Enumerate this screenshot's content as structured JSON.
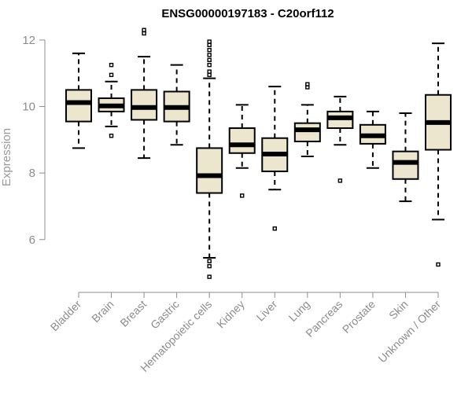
{
  "chart_data": {
    "type": "boxplot",
    "title": "ENSG00000197183 - C20orf112",
    "xlabel": "",
    "ylabel": "Expression",
    "ylim": [
      4.6,
      12.4
    ],
    "yticks": [
      6,
      8,
      10,
      12
    ],
    "categories": [
      "Bladder",
      "Brain",
      "Breast",
      "Gastric",
      "Hematopoietic cells",
      "Kidney",
      "Liver",
      "Lung",
      "Pancreas",
      "Prostate",
      "Skin",
      "Unknown / Other"
    ],
    "boxes": [
      {
        "category": "Bladder",
        "whisker_low": 8.75,
        "q1": 9.55,
        "median": 10.12,
        "q3": 10.5,
        "whisker_high": 11.6,
        "outliers": []
      },
      {
        "category": "Brain",
        "whisker_low": 9.4,
        "q1": 9.85,
        "median": 10.02,
        "q3": 10.25,
        "whisker_high": 10.75,
        "outliers": [
          9.12,
          11.25,
          10.95
        ]
      },
      {
        "category": "Breast",
        "whisker_low": 8.45,
        "q1": 9.6,
        "median": 9.97,
        "q3": 10.5,
        "whisker_high": 11.5,
        "outliers": [
          12.2,
          12.3
        ]
      },
      {
        "category": "Gastric",
        "whisker_low": 8.85,
        "q1": 9.55,
        "median": 9.97,
        "q3": 10.45,
        "whisker_high": 11.25,
        "outliers": []
      },
      {
        "category": "Hematopoietic cells",
        "whisker_low": 5.45,
        "q1": 7.4,
        "median": 7.92,
        "q3": 8.75,
        "whisker_high": 10.85,
        "outliers": [
          11.95,
          11.85,
          11.7,
          11.55,
          11.4,
          11.25,
          11.05,
          10.95,
          5.35,
          5.2,
          4.88
        ]
      },
      {
        "category": "Kidney",
        "whisker_low": 8.15,
        "q1": 8.6,
        "median": 8.85,
        "q3": 9.35,
        "whisker_high": 10.05,
        "outliers": [
          7.32
        ]
      },
      {
        "category": "Liver",
        "whisker_low": 7.5,
        "q1": 8.05,
        "median": 8.57,
        "q3": 9.05,
        "whisker_high": 10.6,
        "outliers": [
          6.33
        ]
      },
      {
        "category": "Lung",
        "whisker_low": 8.5,
        "q1": 8.95,
        "median": 9.3,
        "q3": 9.5,
        "whisker_high": 10.05,
        "outliers": [
          10.58,
          10.67
        ]
      },
      {
        "category": "Pancreas",
        "whisker_low": 8.85,
        "q1": 9.35,
        "median": 9.66,
        "q3": 9.85,
        "whisker_high": 10.3,
        "outliers": [
          7.77
        ]
      },
      {
        "category": "Prostate",
        "whisker_low": 8.15,
        "q1": 8.88,
        "median": 9.12,
        "q3": 9.45,
        "whisker_high": 9.85,
        "outliers": []
      },
      {
        "category": "Skin",
        "whisker_low": 7.15,
        "q1": 7.82,
        "median": 8.32,
        "q3": 8.65,
        "whisker_high": 9.8,
        "outliers": []
      },
      {
        "category": "Unknown / Other",
        "whisker_low": 6.6,
        "q1": 8.7,
        "median": 9.52,
        "q3": 10.35,
        "whisker_high": 11.9,
        "outliers": [
          5.25
        ]
      }
    ]
  },
  "colors": {
    "box_fill": "#ede6cf",
    "box_stroke": "#000000",
    "axis": "#8c8c8c"
  }
}
